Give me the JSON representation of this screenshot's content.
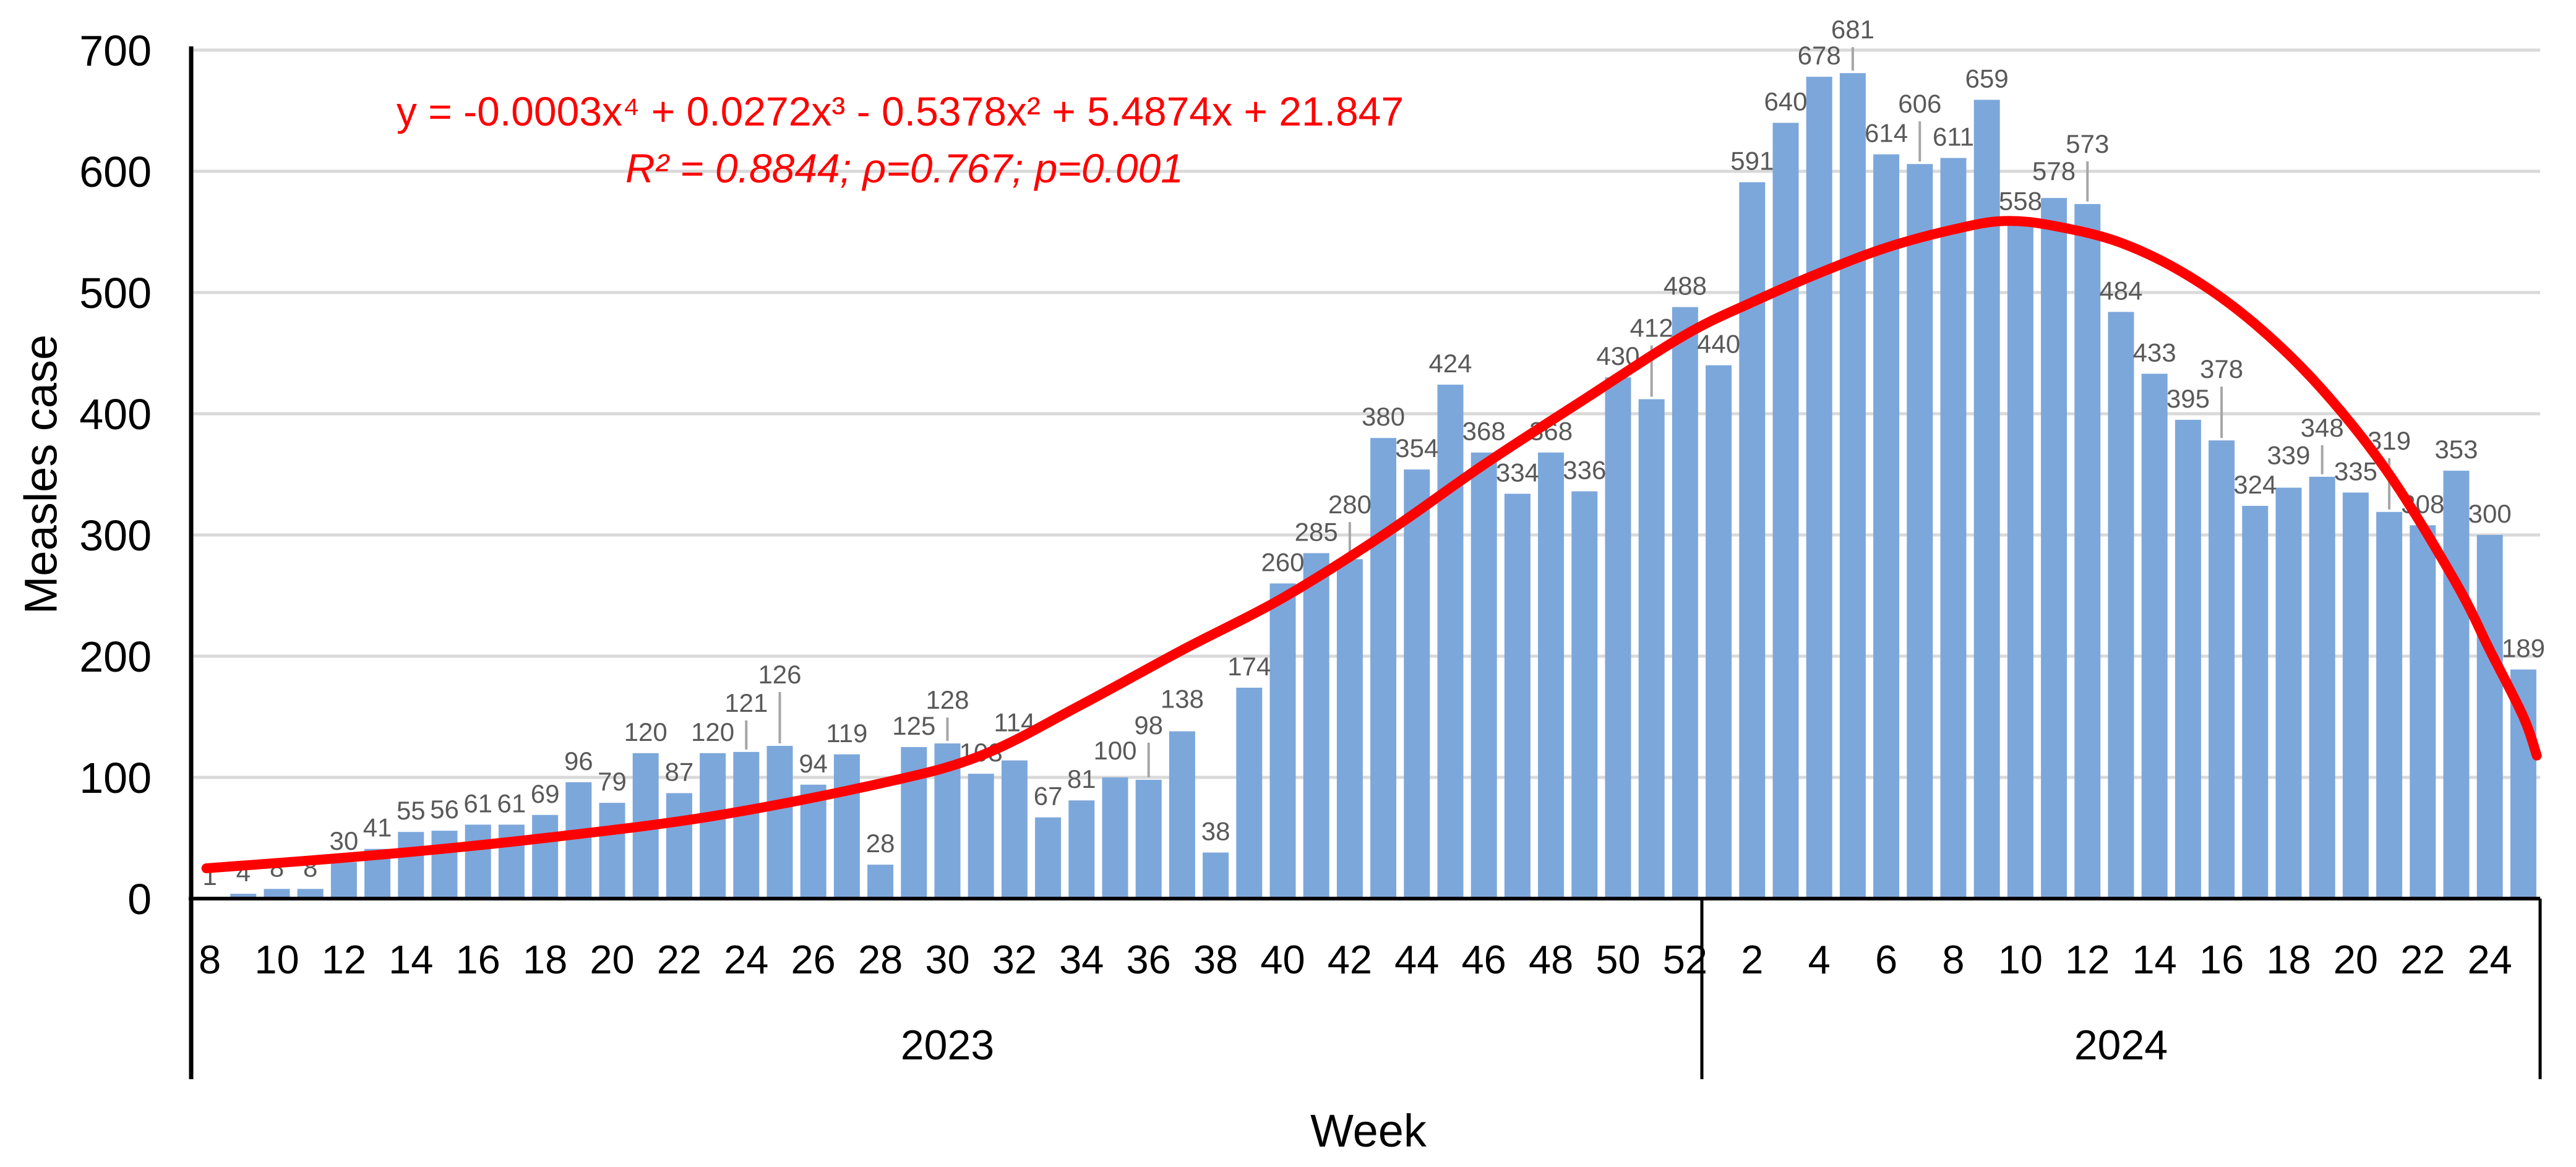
{
  "chart_data": {
    "type": "bar",
    "title": "",
    "ylabel": "Measles case",
    "xlabel": "Week",
    "ylim": [
      0,
      700
    ],
    "yticks": [
      0,
      100,
      200,
      300,
      400,
      500,
      600,
      700
    ],
    "grid": true,
    "legend_position": "none",
    "bar_color": "#7CA7DB",
    "data_label_color": "#595959",
    "gridline_color": "#D9D9D9",
    "leader_line_color": "#A6A6A6",
    "axis_color": "#000000",
    "groups": [
      {
        "year": "2023",
        "weeks": [
          8,
          9,
          10,
          11,
          12,
          13,
          14,
          15,
          16,
          17,
          18,
          19,
          20,
          21,
          22,
          23,
          24,
          25,
          26,
          27,
          28,
          29,
          30,
          31,
          32,
          33,
          34,
          35,
          36,
          37,
          38,
          39,
          40,
          41,
          42,
          43,
          44,
          45,
          46,
          47,
          48,
          49,
          50,
          51,
          52
        ],
        "values": [
          1,
          4,
          8,
          8,
          30,
          41,
          55,
          56,
          61,
          61,
          69,
          96,
          79,
          120,
          87,
          120,
          121,
          126,
          94,
          119,
          28,
          125,
          128,
          103,
          114,
          67,
          81,
          100,
          98,
          138,
          38,
          174,
          260,
          285,
          280,
          380,
          354,
          424,
          368,
          334,
          368,
          336,
          430,
          412,
          488
        ],
        "tick_labels": [
          8,
          10,
          12,
          14,
          16,
          18,
          20,
          22,
          24,
          26,
          28,
          30,
          32,
          34,
          36,
          38,
          40,
          42,
          44,
          46,
          48,
          50,
          52
        ]
      },
      {
        "year": "2024",
        "weeks": [
          1,
          2,
          3,
          4,
          5,
          6,
          7,
          8,
          9,
          10,
          11,
          12,
          13,
          14,
          15,
          16,
          17,
          18,
          19,
          20,
          21,
          22,
          23,
          24,
          25
        ],
        "values": [
          440,
          591,
          640,
          678,
          681,
          614,
          606,
          611,
          659,
          558,
          578,
          573,
          484,
          433,
          395,
          378,
          324,
          339,
          348,
          335,
          319,
          308,
          353,
          300,
          189
        ],
        "tick_labels": [
          2,
          4,
          6,
          8,
          10,
          12,
          14,
          16,
          18,
          20,
          22,
          24
        ]
      }
    ],
    "trendline": {
      "color": "#FF0000",
      "equation": "y = -0.0003x⁴ + 0.0272x³ - 0.5378x² + 5.4874x + 21.847",
      "stats": "R² = 0.8844; ρ=0.767; p=0.001",
      "points": [
        [
          -0.1,
          25
        ],
        [
          5,
          36
        ],
        [
          10,
          50
        ],
        [
          15,
          68
        ],
        [
          20,
          95
        ],
        [
          23,
          118
        ],
        [
          26,
          160
        ],
        [
          29,
          205
        ],
        [
          32,
          248
        ],
        [
          35,
          300
        ],
        [
          38,
          358
        ],
        [
          41,
          412
        ],
        [
          44,
          465
        ],
        [
          46,
          492
        ],
        [
          48,
          516
        ],
        [
          50,
          537
        ],
        [
          52,
          552
        ],
        [
          53.5,
          559
        ],
        [
          55,
          555
        ],
        [
          57,
          541
        ],
        [
          59,
          514
        ],
        [
          61,
          474
        ],
        [
          63,
          420
        ],
        [
          65,
          350
        ],
        [
          67,
          260
        ],
        [
          68,
          205
        ],
        [
          69,
          150
        ],
        [
          69.4,
          118
        ]
      ]
    }
  }
}
